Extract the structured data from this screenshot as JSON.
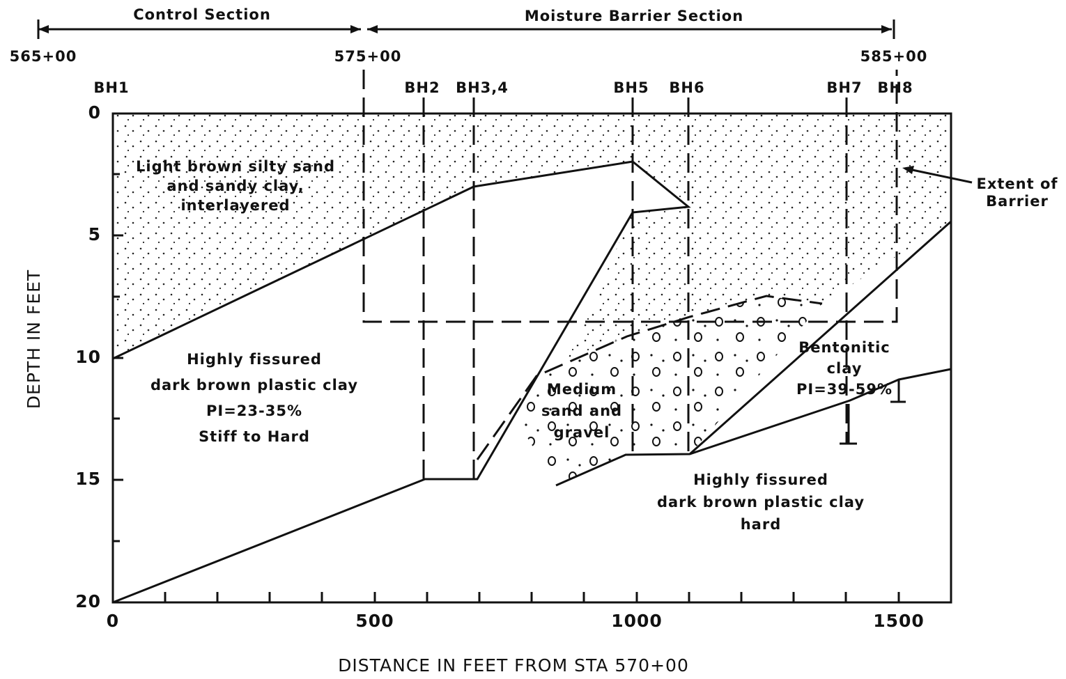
{
  "sections": [
    "Control Section",
    "Moisture Barrier Section"
  ],
  "stations": [
    "565+00",
    "575+00",
    "585+00"
  ],
  "boreholes": [
    "BH1",
    "BH2",
    "BH3,4",
    "BH5",
    "BH6",
    "BH7",
    "BH8"
  ],
  "y_axis": {
    "title": "DEPTH IN FEET",
    "ticks": [
      "0",
      "5",
      "10",
      "15",
      "20"
    ]
  },
  "x_axis": {
    "title": "DISTANCE IN FEET FROM STA 570+00",
    "ticks": [
      "0",
      "500",
      "1000",
      "1500"
    ]
  },
  "layers": [
    {
      "lines": [
        "Light brown silty sand",
        "and sandy clay,",
        "interlayered"
      ]
    },
    {
      "lines": [
        "Highly fissured",
        "dark brown plastic clay",
        "PI=23-35%",
        "Stiff to Hard"
      ]
    },
    {
      "lines": [
        "Medium",
        "sand and",
        "gravel"
      ]
    },
    {
      "lines": [
        "Bentonitic",
        "clay",
        "PI=39-59%"
      ]
    },
    {
      "lines": [
        "Highly fissured",
        "dark brown plastic clay",
        "hard"
      ]
    }
  ],
  "annotation": {
    "lines": [
      "Extent of",
      "Barrier"
    ]
  }
}
